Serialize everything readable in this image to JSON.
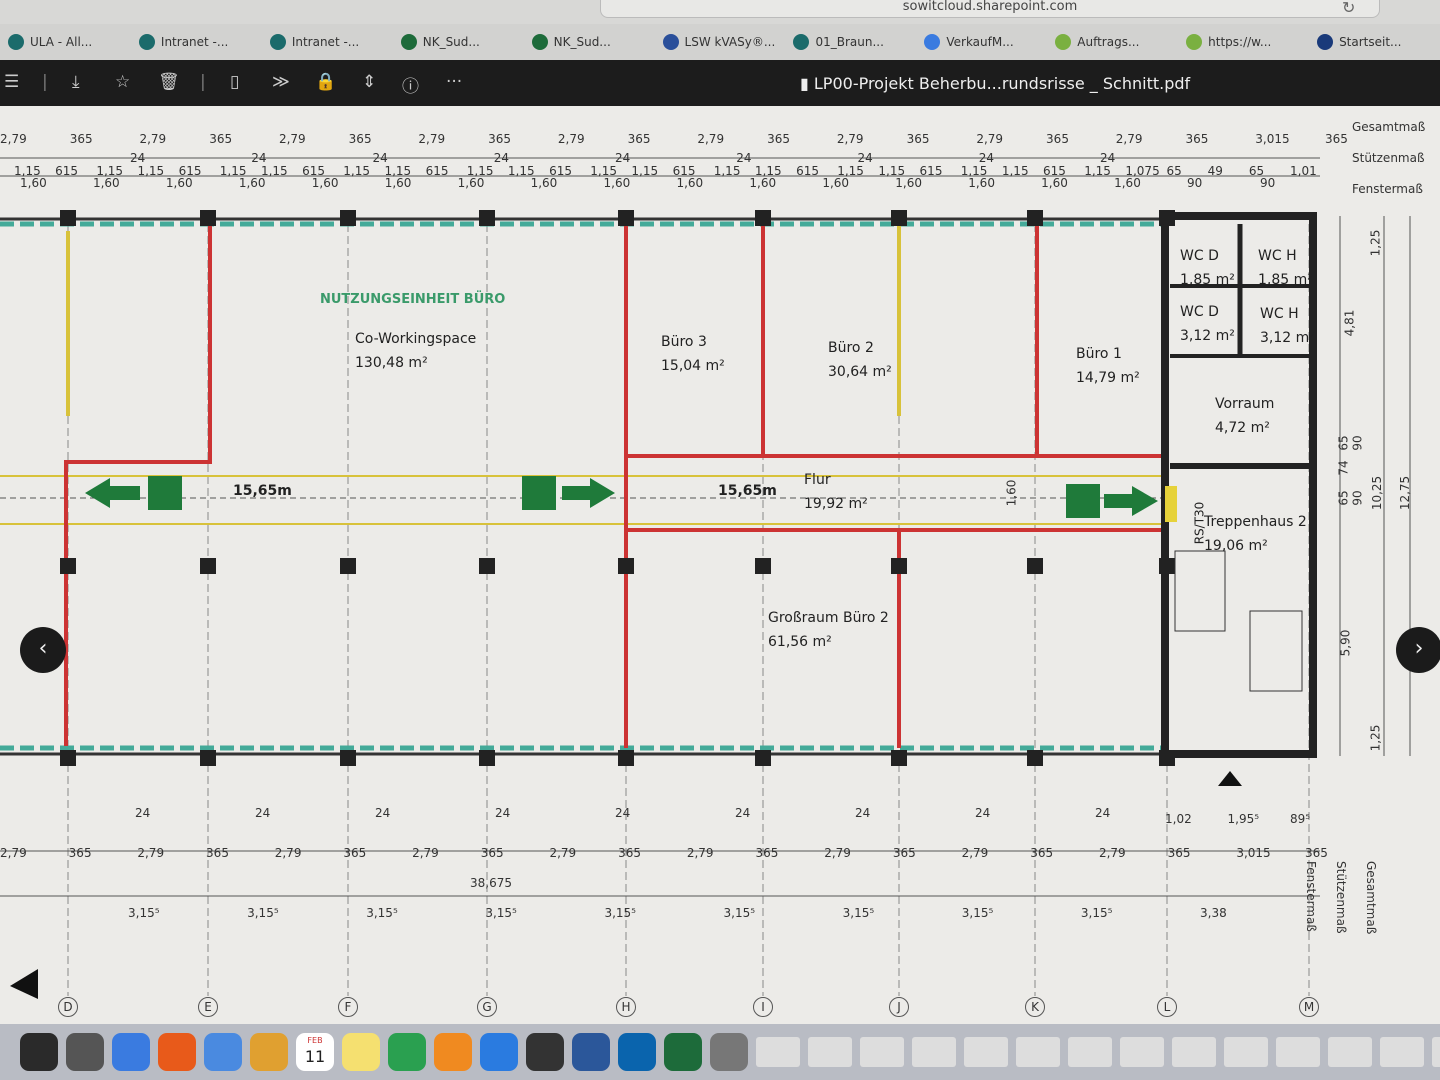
{
  "browser": {
    "url": "sowitcloud.sharepoint.com",
    "bookmarks": [
      {
        "label": "ULA - All...",
        "color": "#1b6b6b"
      },
      {
        "label": "Intranet -...",
        "color": "#1b6b6b"
      },
      {
        "label": "Intranet -...",
        "color": "#1b6b6b"
      },
      {
        "label": "NK_Sud...",
        "color": "#1d6b3a"
      },
      {
        "label": "NK_Sud...",
        "color": "#1d6b3a"
      },
      {
        "label": "LSW kVASy®...",
        "color": "#2a4f9a"
      },
      {
        "label": "01_Braun...",
        "color": "#1b6b6b"
      },
      {
        "label": "VerkaufM...",
        "color": "#3a7be0"
      },
      {
        "label": "Auftrags...",
        "color": "#7ab040"
      },
      {
        "label": "https://w...",
        "color": "#7ab040"
      },
      {
        "label": "Startseit...",
        "color": "#1a3a7a"
      }
    ]
  },
  "pdf_toolbar": {
    "title": "LP00-Projekt Beherbu...rundsrisse _ Schnitt.pdf",
    "icons": [
      "sidebar-icon",
      "download-icon",
      "star-icon",
      "trash-icon",
      "page-icon",
      "forward-icon",
      "lock-icon",
      "compress-icon",
      "info-icon",
      "more-icon"
    ]
  },
  "plan": {
    "section_label": "NUTZUNGSEINHEIT BÜRO",
    "rooms": [
      {
        "name": "Co-Workingspace",
        "area": "130,48 m²"
      },
      {
        "name": "Büro 3",
        "area": "15,04 m²"
      },
      {
        "name": "Büro 2",
        "area": "30,64 m²"
      },
      {
        "name": "Büro 1",
        "area": "14,79 m²"
      },
      {
        "name": "Flur",
        "area": "19,92 m²"
      },
      {
        "name": "Großraum Büro 2",
        "area": "61,56 m²"
      },
      {
        "name": "WC D",
        "area": "1,85 m²"
      },
      {
        "name": "WC H",
        "area": "1,85 m²"
      },
      {
        "name": "WC D",
        "area": "3,12 m²"
      },
      {
        "name": "WC H",
        "area": "3,12 m²"
      },
      {
        "name": "Vorraum",
        "area": "4,72 m²"
      },
      {
        "name": "Treppenhaus 2",
        "area": "19,06 m²"
      }
    ],
    "escape_distance": "15,65m",
    "door_label": "RS/T30",
    "corridor_width": "1,60",
    "legend_right": [
      "Gesamtmaß",
      "Stützenmaß",
      "Fenstermaß"
    ],
    "legend_bottom": [
      "Fenstermaß",
      "Stützenmaß",
      "Gesamtmaß"
    ],
    "top_dims": {
      "row1": [
        "2,79",
        "365",
        "2,79",
        "365",
        "2,79",
        "365",
        "2,79",
        "365",
        "2,79",
        "365",
        "2,79",
        "365",
        "2,79",
        "365",
        "2,79",
        "365",
        "2,79",
        "365",
        "3,015",
        "365"
      ],
      "row2": [
        "24",
        "24",
        "24",
        "24",
        "24",
        "24",
        "24",
        "24",
        "24"
      ],
      "row3": [
        "1,15",
        "615",
        "1,15",
        "1,15",
        "615",
        "1,15",
        "1,15",
        "615",
        "1,15",
        "1,15",
        "615",
        "1,15",
        "1,15",
        "615",
        "1,15",
        "1,15",
        "615",
        "1,15",
        "1,15",
        "615",
        "1,15",
        "1,15",
        "615",
        "1,15",
        "1,15",
        "615",
        "1,15",
        "1,075",
        "65",
        "49",
        "65",
        "1,01"
      ],
      "row4": [
        "1,60",
        "1,60",
        "1,60",
        "1,60",
        "1,60",
        "1,60",
        "1,60",
        "1,60",
        "1,60",
        "1,60",
        "1,60",
        "1,60",
        "1,60",
        "1,60",
        "1,60",
        "1,60",
        "90",
        "90"
      ]
    },
    "bottom_dims": {
      "row1": [
        "24",
        "24",
        "24",
        "24",
        "24",
        "24",
        "24",
        "24",
        "24"
      ],
      "row2": [
        "2,79",
        "365",
        "2,79",
        "365",
        "2,79",
        "365",
        "2,79",
        "365",
        "2,79",
        "365",
        "2,79",
        "365",
        "2,79",
        "365",
        "2,79",
        "365",
        "2,79",
        "365",
        "3,015",
        "365"
      ],
      "right": [
        "1,02",
        "1,95⁵",
        "89⁵"
      ],
      "total": "38,675",
      "grid": [
        "3,15⁵",
        "3,15⁵",
        "3,15⁵",
        "3,15⁵",
        "3,15⁵",
        "3,15⁵",
        "3,15⁵",
        "3,15⁵",
        "3,15⁵",
        "3,38"
      ]
    },
    "right_dims": [
      "1,25",
      "4,81",
      "65",
      "74",
      "65",
      "90",
      "90",
      "10,25",
      "12,75",
      "5,90",
      "1,25"
    ],
    "axes": [
      "D",
      "E",
      "F",
      "G",
      "H",
      "I",
      "J",
      "K",
      "L",
      "M"
    ]
  },
  "dock": {
    "calendar_month": "FEB",
    "calendar_day": "11"
  }
}
